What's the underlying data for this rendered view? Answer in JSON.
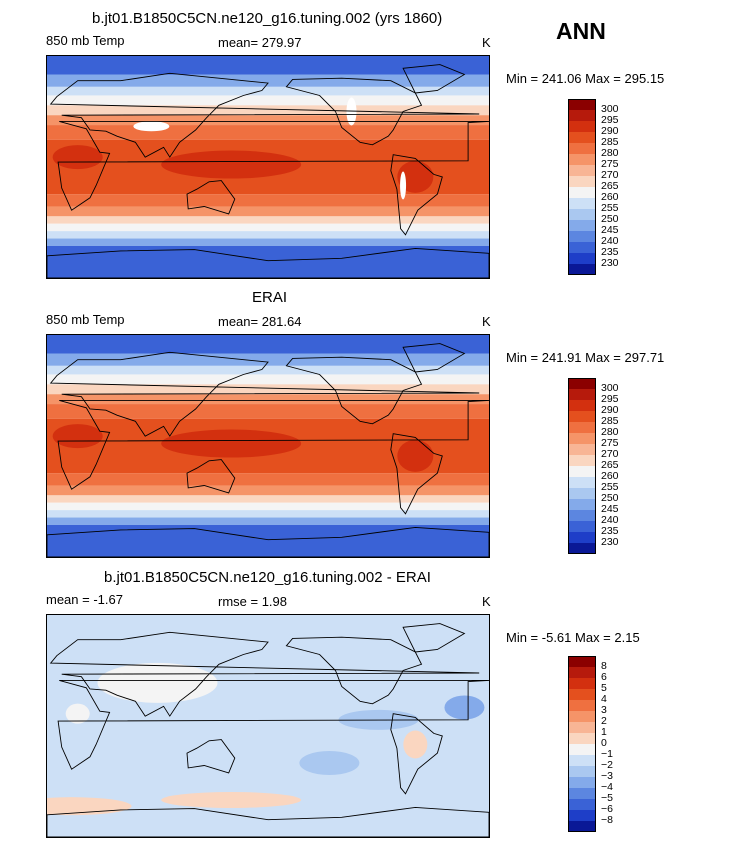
{
  "season": "ANN",
  "panels": [
    {
      "title": "b.jt01.B1850C5CN.ne120_g16.tuning.002 (yrs 1860)",
      "left_label": "850 mb Temp",
      "center_label": "mean= 279.97",
      "units": "K",
      "minmax": "Min = 241.06 Max = 295.15",
      "kind": "model"
    },
    {
      "title": "ERAI",
      "left_label": "850 mb Temp",
      "center_label": "mean= 281.64",
      "units": "K",
      "minmax": "Min = 241.91 Max = 297.71",
      "kind": "obs"
    },
    {
      "title": "b.jt01.B1850C5CN.ne120_g16.tuning.002 - ERAI",
      "left_label": "mean =   -1.67",
      "center_label": "rmse =    1.98",
      "units": "K",
      "minmax": "Min =   -5.61 Max =    2.15",
      "kind": "diff"
    }
  ],
  "colorbar_abs": {
    "labels": [
      "300",
      "295",
      "290",
      "285",
      "280",
      "275",
      "270",
      "265",
      "260",
      "255",
      "250",
      "245",
      "240",
      "235",
      "230"
    ],
    "colors": [
      "#8b0000",
      "#b61a0c",
      "#d3300f",
      "#e4501e",
      "#ef7040",
      "#f59468",
      "#f8b595",
      "#fad6c0",
      "#f4f4f4",
      "#cde0f6",
      "#aac8f0",
      "#84aaea",
      "#5c86e0",
      "#3a62d6",
      "#1e3ec8",
      "#0a1896"
    ]
  },
  "colorbar_diff": {
    "labels": [
      "8",
      "6",
      "5",
      "4",
      "3",
      "2",
      "1",
      "0",
      "−1",
      "−2",
      "−3",
      "−4",
      "−5",
      "−6",
      "−8"
    ],
    "colors": [
      "#8b0000",
      "#b61a0c",
      "#d3300f",
      "#e4501e",
      "#ef7040",
      "#f59468",
      "#f8b595",
      "#fad6c0",
      "#f4f4f4",
      "#cde0f6",
      "#aac8f0",
      "#84aaea",
      "#5c86e0",
      "#3a62d6",
      "#1e3ec8",
      "#0a1896"
    ]
  }
}
